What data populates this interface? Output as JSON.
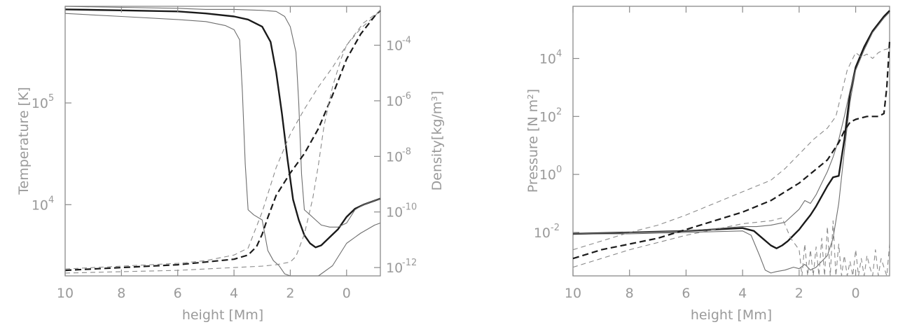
{
  "chart_data": [
    {
      "type": "line",
      "xlabel": "height [Mm]",
      "ylabel": "Temperature [K]",
      "y2label": "Density[kg/m³]",
      "xlim": [
        10,
        -1.2
      ],
      "ylim_log10": [
        3.3,
        5.95
      ],
      "y2lim_log10": [
        -12.3,
        -2.6
      ],
      "yscale": "log",
      "y2scale": "log",
      "xticks": [
        "10",
        "8",
        "6",
        "4",
        "2",
        "0"
      ],
      "xtick_values": [
        10,
        8,
        6,
        4,
        2,
        0
      ],
      "yticks": [
        {
          "value": 4,
          "base": "10",
          "exp": "4"
        },
        {
          "value": 5,
          "base": "10",
          "exp": "5"
        }
      ],
      "y2ticks": [
        {
          "value": -12,
          "base": "10",
          "exp": "-12"
        },
        {
          "value": -10,
          "base": "10",
          "exp": "-10"
        },
        {
          "value": -8,
          "base": "10",
          "exp": "-8"
        },
        {
          "value": -6,
          "base": "10",
          "exp": "-6"
        },
        {
          "value": -4,
          "base": "10",
          "exp": "-4"
        }
      ],
      "series": [
        {
          "axis": "left",
          "style": "solid-thin",
          "x": [
            10,
            8,
            6,
            5,
            4.3,
            4.0,
            3.8,
            3.7,
            3.6,
            3.5,
            3.3,
            3.0,
            2.8,
            2.6,
            2.4,
            2.2,
            2.0,
            1.8,
            1.6,
            1.4,
            1.2,
            1.0,
            0.5,
            0.0,
            -0.5,
            -1.0,
            -1.2
          ],
          "y": [
            5.88,
            5.85,
            5.82,
            5.8,
            5.76,
            5.72,
            5.62,
            5.1,
            4.4,
            3.95,
            3.9,
            3.85,
            3.55,
            3.45,
            3.4,
            3.32,
            3.3,
            3.3,
            3.3,
            3.3,
            3.3,
            3.3,
            3.4,
            3.62,
            3.72,
            3.8,
            3.82
          ]
        },
        {
          "axis": "left",
          "style": "solid-thick",
          "x": [
            10,
            8,
            6,
            5,
            4.0,
            3.5,
            3.0,
            2.7,
            2.5,
            2.3,
            2.1,
            1.9,
            1.7,
            1.5,
            1.3,
            1.1,
            0.9,
            0.6,
            0.3,
            0.0,
            -0.3,
            -0.6,
            -1.0,
            -1.2
          ],
          "y": [
            5.92,
            5.91,
            5.9,
            5.88,
            5.85,
            5.82,
            5.75,
            5.6,
            5.3,
            4.9,
            4.45,
            4.05,
            3.85,
            3.7,
            3.62,
            3.58,
            3.6,
            3.68,
            3.76,
            3.88,
            3.96,
            4.0,
            4.04,
            4.06
          ]
        },
        {
          "axis": "left",
          "style": "solid-thin",
          "x": [
            10,
            8,
            6,
            5,
            4,
            3,
            2.5,
            2.2,
            2.0,
            1.8,
            1.7,
            1.6,
            1.5,
            1.3,
            1.1,
            0.9,
            0.6,
            0.3,
            0.0,
            -0.3,
            -0.6,
            -1.0,
            -1.2
          ],
          "y": [
            5.95,
            5.94,
            5.93,
            5.92,
            5.92,
            5.91,
            5.9,
            5.85,
            5.75,
            5.5,
            5.0,
            4.3,
            3.95,
            3.9,
            3.85,
            3.8,
            3.78,
            3.78,
            3.82,
            3.95,
            4.0,
            4.04,
            4.06
          ]
        },
        {
          "axis": "right",
          "style": "dashed-thin",
          "x": [
            10,
            8,
            6,
            5,
            4,
            3.5,
            3.0,
            2.5,
            2.0,
            1.5,
            1.0,
            0.5,
            0.0,
            -0.5,
            -1.0,
            -1.2
          ],
          "y": [
            -12.05,
            -11.95,
            -11.85,
            -11.75,
            -11.55,
            -11.3,
            -10.0,
            -8.4,
            -7.2,
            -6.3,
            -5.5,
            -4.8,
            -4.0,
            -3.4,
            -2.95,
            -2.75
          ]
        },
        {
          "axis": "right",
          "style": "dashed-thick",
          "x": [
            10,
            8,
            6,
            5,
            4,
            3.5,
            3.2,
            3.0,
            2.8,
            2.5,
            2.0,
            1.5,
            1.0,
            0.5,
            0.0,
            -0.5,
            -1.0,
            -1.2
          ],
          "y": [
            -12.1,
            -12.0,
            -11.9,
            -11.8,
            -11.7,
            -11.55,
            -11.25,
            -10.8,
            -10.2,
            -9.4,
            -8.6,
            -7.9,
            -7.0,
            -5.8,
            -4.5,
            -3.6,
            -2.95,
            -2.75
          ]
        },
        {
          "axis": "right",
          "style": "dashed-thin",
          "x": [
            10,
            8,
            6,
            5,
            4,
            3.0,
            2.5,
            2.0,
            1.8,
            1.5,
            1.2,
            1.0,
            0.8,
            0.5,
            0.2,
            0.0,
            -0.3,
            -0.6,
            -1.0,
            -1.2
          ],
          "y": [
            -12.2,
            -12.15,
            -12.1,
            -12.05,
            -12.0,
            -11.95,
            -11.9,
            -11.8,
            -11.6,
            -10.8,
            -9.5,
            -8.3,
            -6.9,
            -5.5,
            -4.5,
            -4.0,
            -3.6,
            -3.2,
            -2.9,
            -2.75
          ]
        }
      ]
    },
    {
      "type": "line",
      "xlabel": "height [Mm]",
      "ylabel": "Pressure [N m²]",
      "xlim": [
        10,
        -1.2
      ],
      "ylim_log10": [
        -3.5,
        5.8
      ],
      "yscale": "log",
      "xticks": [
        "10",
        "8",
        "6",
        "4",
        "2",
        "0"
      ],
      "xtick_values": [
        10,
        8,
        6,
        4,
        2,
        0
      ],
      "yticks": [
        {
          "value": -2,
          "base": "10",
          "exp": "-2"
        },
        {
          "value": 0,
          "base": "10",
          "exp": "0"
        },
        {
          "value": 2,
          "base": "10",
          "exp": "2"
        },
        {
          "value": 4,
          "base": "10",
          "exp": "4"
        }
      ],
      "series": [
        {
          "axis": "left",
          "style": "solid-thin",
          "x": [
            10,
            8,
            6,
            4,
            3.7,
            3.4,
            3.2,
            3.0,
            2.8,
            2.5,
            2.2,
            2.0,
            1.8,
            1.6,
            1.4,
            1.2,
            1.0,
            0.8,
            0.6,
            0.4,
            0.2,
            0.0,
            -0.3,
            -0.6,
            -1.0,
            -1.2
          ],
          "y": [
            -2.05,
            -2.05,
            -2.0,
            -1.95,
            -2.1,
            -2.8,
            -3.3,
            -3.4,
            -3.35,
            -3.3,
            -3.2,
            -3.25,
            -3.1,
            -3.3,
            -3.2,
            -3.0,
            -2.8,
            -2.2,
            -1.0,
            0.8,
            2.5,
            3.6,
            4.3,
            4.9,
            5.4,
            5.6
          ]
        },
        {
          "axis": "left",
          "style": "solid-thick",
          "x": [
            10,
            8,
            6,
            4,
            3.6,
            3.3,
            3.0,
            2.8,
            2.6,
            2.4,
            2.2,
            2.0,
            1.8,
            1.6,
            1.4,
            1.2,
            1.0,
            0.8,
            0.6,
            0.4,
            0.2,
            0.0,
            -0.3,
            -0.6,
            -1.0,
            -1.2
          ],
          "y": [
            -2.05,
            -2.0,
            -1.95,
            -1.85,
            -1.95,
            -2.2,
            -2.45,
            -2.55,
            -2.45,
            -2.3,
            -2.1,
            -1.9,
            -1.65,
            -1.4,
            -1.1,
            -0.75,
            -0.4,
            -0.1,
            -0.05,
            1.2,
            2.8,
            3.7,
            4.4,
            4.95,
            5.45,
            5.65
          ]
        },
        {
          "axis": "left",
          "style": "solid-thin",
          "x": [
            10,
            8,
            6,
            4,
            3.5,
            3.0,
            2.5,
            2.0,
            1.8,
            1.6,
            1.4,
            1.2,
            1.0,
            0.8,
            0.6,
            0.4,
            0.2,
            0.0,
            -0.3,
            -0.6,
            -1.0,
            -1.2
          ],
          "y": [
            -2.05,
            -2.0,
            -1.95,
            -1.8,
            -1.8,
            -1.75,
            -1.65,
            -1.2,
            -0.9,
            -1.0,
            -0.7,
            -0.3,
            0.1,
            0.6,
            1.2,
            2.0,
            2.9,
            3.6,
            4.3,
            4.9,
            5.4,
            5.6
          ]
        },
        {
          "axis": "left",
          "style": "dashed-thin",
          "x": [
            10,
            9,
            8,
            7,
            6,
            5,
            4,
            3.0,
            2.5,
            2.0,
            1.5,
            1.0,
            0.7,
            0.5,
            0.3,
            0.1,
            0.0,
            -0.2,
            -0.4,
            -0.6,
            -0.8,
            -1.0,
            -1.2
          ],
          "y": [
            -2.6,
            -2.3,
            -2.0,
            -1.75,
            -1.4,
            -1.0,
            -0.6,
            -0.2,
            0.2,
            0.7,
            1.2,
            1.6,
            2.0,
            2.8,
            3.6,
            4.0,
            4.2,
            4.05,
            4.15,
            4.0,
            4.2,
            4.3,
            4.35
          ]
        },
        {
          "axis": "left",
          "style": "dashed-thick",
          "x": [
            10,
            9,
            8,
            7,
            6,
            5,
            4,
            3.0,
            2.5,
            2.0,
            1.5,
            1.0,
            0.8,
            0.6,
            0.4,
            0.2,
            0.0,
            -0.4,
            -0.8,
            -1.0,
            -1.1,
            -1.2
          ],
          "y": [
            -2.9,
            -2.6,
            -2.4,
            -2.2,
            -1.9,
            -1.6,
            -1.3,
            -0.9,
            -0.6,
            -0.3,
            0.1,
            0.5,
            0.8,
            1.1,
            1.5,
            1.8,
            1.9,
            2.0,
            2.0,
            2.1,
            3.0,
            4.6
          ]
        },
        {
          "axis": "left",
          "style": "dashed-thin",
          "x": [
            10,
            9,
            8,
            7,
            6,
            5,
            4,
            3.5,
            3.0,
            2.6,
            2.3,
            2.0,
            1.9,
            1.8,
            1.7,
            1.6,
            1.5,
            1.4,
            1.3,
            1.2,
            1.1,
            1.0,
            0.9,
            0.8,
            0.7,
            0.6,
            0.5,
            0.4,
            0.3,
            0.2,
            0.1,
            0.0,
            -0.1,
            -0.2,
            -0.3,
            -0.4,
            -0.5,
            -0.6,
            -0.7,
            -0.8,
            -0.9,
            -1.0,
            -1.1,
            -1.2
          ],
          "y": [
            -3.2,
            -2.9,
            -2.6,
            -2.35,
            -2.1,
            -1.9,
            -1.7,
            -1.65,
            -1.6,
            -1.5,
            -2.2,
            -2.6,
            -3.5,
            -2.4,
            -3.5,
            -2.6,
            -3.5,
            -2.5,
            -3.5,
            -2.2,
            -3.5,
            -1.8,
            -3.5,
            -1.6,
            -3.5,
            -2.4,
            -3.5,
            -2.8,
            -3.5,
            -3.0,
            -3.5,
            -2.6,
            -3.5,
            -2.9,
            -3.5,
            -2.8,
            -3.2,
            -3.5,
            -2.6,
            -3.5,
            -2.9,
            -3.2,
            -3.5,
            -2.4
          ]
        }
      ]
    }
  ]
}
